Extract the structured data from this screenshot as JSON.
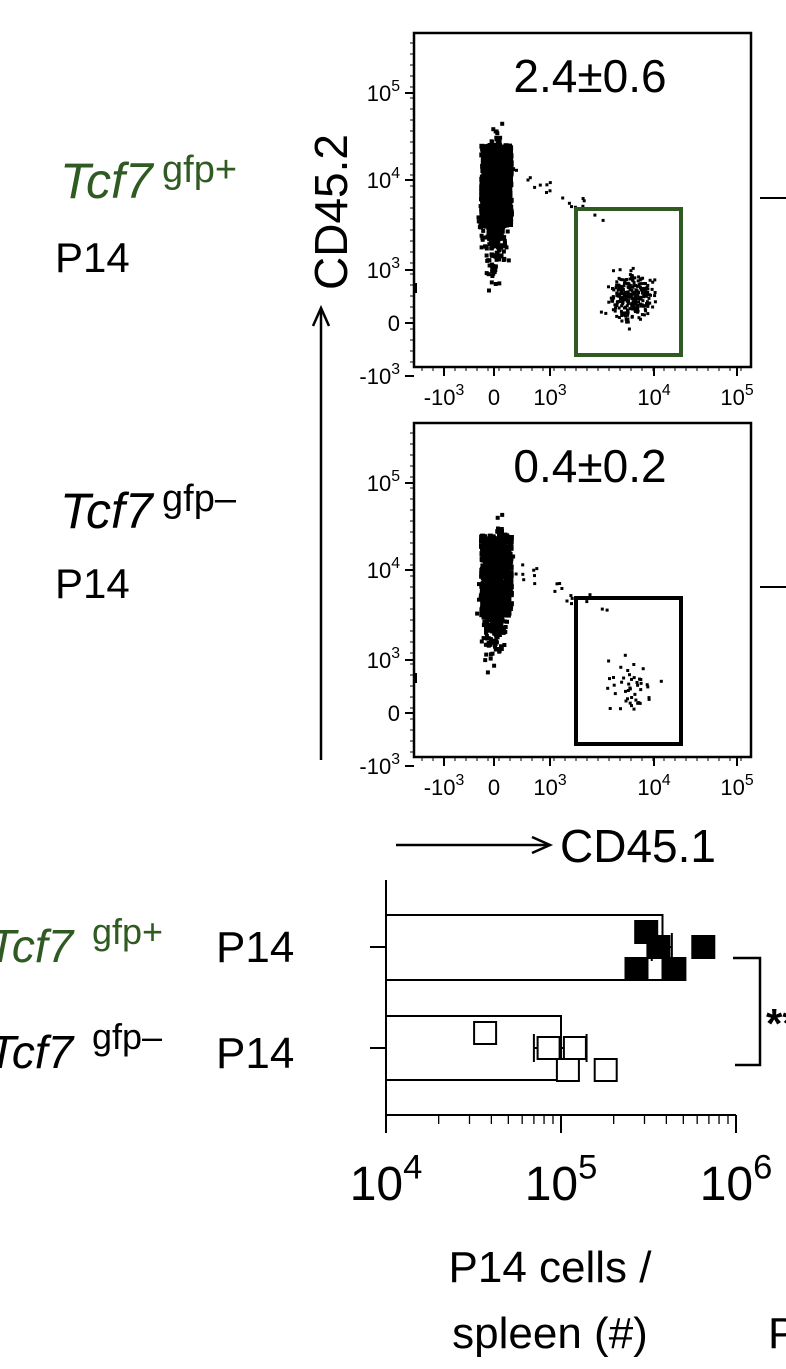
{
  "labels": {
    "gfp_pos_italic": "Tcf7",
    "gfp_pos_sup": "gfp+",
    "gfp_neg_italic": "Tcf7",
    "gfp_neg_sup": "gfp–",
    "p14": "P14",
    "yaxis": "CD45.2",
    "xaxis": "CD45.1",
    "significance": "**",
    "right_edge_letter": "P"
  },
  "colors": {
    "green": "#2f5a22",
    "black": "#000000"
  },
  "chart_data": [
    {
      "type": "scatter",
      "title": "Tcf7gfp+ P14",
      "gate_value": "2.4±0.6",
      "gate_color": "#2f5a22",
      "xlabel": "CD45.1",
      "ylabel": "CD45.2",
      "x_ticks": [
        "-10^3",
        "0",
        "10^3",
        "10^4",
        "10^5"
      ],
      "y_ticks": [
        "10^5",
        "10^4",
        "10^3",
        "0",
        "-10^3"
      ],
      "scale": "biexponential",
      "populations": [
        {
          "name": "host",
          "cd451_center": 0,
          "cd452_center": 10000
        },
        {
          "name": "gated",
          "cd451_center": 8000,
          "cd452_center": 100
        }
      ]
    },
    {
      "type": "scatter",
      "title": "Tcf7gfp– P14",
      "gate_value": "0.4±0.2",
      "gate_color": "#000000",
      "xlabel": "CD45.1",
      "ylabel": "CD45.2",
      "x_ticks": [
        "-10^3",
        "0",
        "10^3",
        "10^4",
        "10^5"
      ],
      "y_ticks": [
        "10^5",
        "10^4",
        "10^3",
        "0",
        "-10^3"
      ],
      "scale": "biexponential",
      "populations": [
        {
          "name": "host",
          "cd451_center": 0,
          "cd452_center": 8000
        },
        {
          "name": "gated",
          "cd451_center": 5000,
          "cd452_center": 300
        }
      ]
    },
    {
      "type": "bar",
      "orientation": "horizontal",
      "xscale": "log",
      "xlim": [
        10000,
        1000000
      ],
      "x_ticks": [
        "10^4",
        "10^5",
        "10^6"
      ],
      "xlabel": "P14 cells / spleen (#)",
      "categories": [
        "Tcf7gfp+ P14",
        "Tcf7gfp– P14"
      ],
      "series": [
        {
          "name": "Tcf7gfp+ P14",
          "mean": 380000,
          "sem": [
            330000,
            430000
          ],
          "points": [
            350000,
            360000,
            650000,
            270000,
            390000
          ],
          "marker": "filled-square"
        },
        {
          "name": "Tcf7gfp– P14",
          "mean": 100000,
          "sem": [
            70000,
            140000
          ],
          "points": [
            42000,
            85000,
            120000,
            180000,
            96000
          ],
          "marker": "open-square"
        }
      ],
      "significance": "**"
    }
  ]
}
